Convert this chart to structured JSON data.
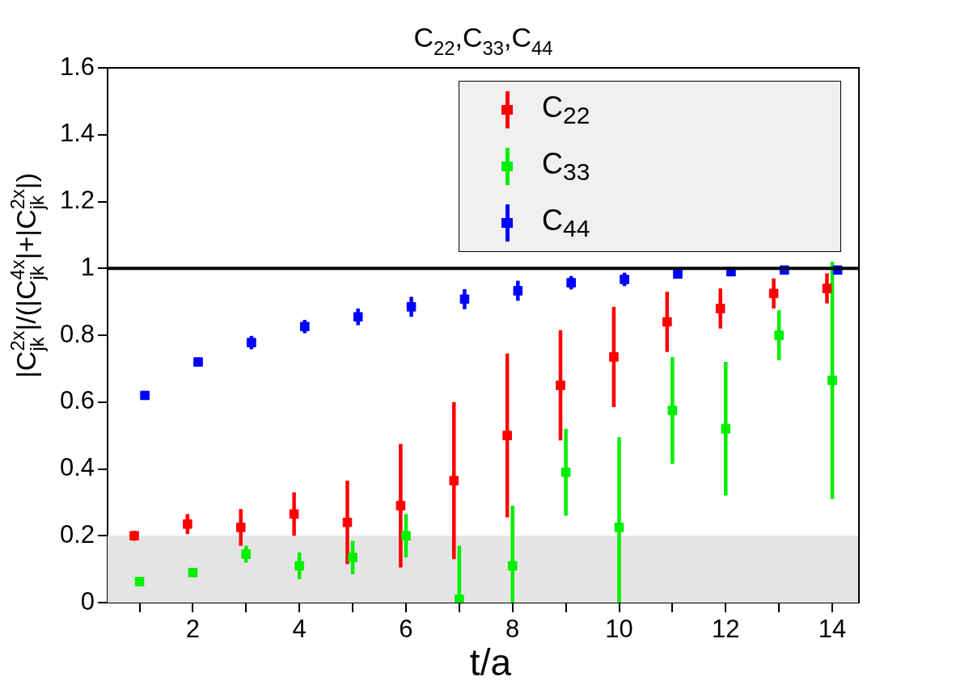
{
  "chart_data": {
    "type": "scatter",
    "title": "C$_{22}$,C$_{33}$,C$_{44}$",
    "xlabel": "t/a",
    "ylabel": "|C$^{2x}$$_{jk}$|/(|C$^{4x}$$_{jk}$|+|C$^{2x}$$_{jk}$|)",
    "xlim": [
      0.4,
      14.5
    ],
    "ylim": [
      0,
      1.6
    ],
    "xticks": [
      {
        "value": 1,
        "label": null
      },
      2,
      {
        "value": 3,
        "label": null
      },
      4,
      {
        "value": 5,
        "label": null
      },
      6,
      {
        "value": 7,
        "label": null
      },
      8,
      {
        "value": 9,
        "label": null
      },
      10,
      {
        "value": 11,
        "label": null
      },
      12,
      {
        "value": 13,
        "label": null
      },
      14
    ],
    "yticks": [
      0,
      0.2,
      0.4,
      0.6,
      0.8,
      1,
      1.2,
      1.4,
      1.6
    ],
    "grid": false,
    "legend": "top right",
    "marker": "square",
    "ref_lines": [
      {
        "axis": "y",
        "value": 1,
        "color": "#000000"
      }
    ],
    "bands": [
      {
        "axis": "y",
        "from": 0,
        "to": 0.2,
        "color": "#e4e4e4"
      }
    ],
    "series": [
      {
        "name": "C$_{22}$",
        "color": "#ff0000",
        "x": [
          0.9,
          1.9,
          2.9,
          3.9,
          4.9,
          5.9,
          6.9,
          7.9,
          8.9,
          9.9,
          10.9,
          11.9,
          12.9,
          13.9
        ],
        "values": [
          0.2,
          0.235,
          0.225,
          0.265,
          0.24,
          0.29,
          0.365,
          0.5,
          0.65,
          0.735,
          0.84,
          0.88,
          0.925,
          0.94
        ],
        "errors": [
          0.015,
          0.03,
          0.055,
          0.065,
          0.125,
          0.185,
          0.235,
          0.245,
          0.165,
          0.15,
          0.09,
          0.06,
          0.045,
          0.045
        ]
      },
      {
        "name": "C$_{33}$",
        "color": "#00ee00",
        "x": [
          1,
          2,
          3,
          4,
          5,
          6,
          7,
          8,
          9,
          10,
          11,
          12,
          13,
          14
        ],
        "values": [
          0.063,
          0.09,
          0.145,
          0.11,
          0.135,
          0.2,
          0.01,
          0.11,
          0.39,
          0.225,
          0.575,
          0.52,
          0.8,
          0.665
        ],
        "errors": [
          null,
          null,
          0.025,
          0.04,
          0.05,
          0.065,
          [
            0,
            0.17
          ],
          [
            0,
            0.29
          ],
          0.13,
          [
            0,
            0.495
          ],
          0.16,
          0.2,
          0.075,
          0.355
        ]
      },
      {
        "name": "C$_{44}$",
        "color": "#0000ff",
        "x": [
          1.1,
          2.1,
          3.1,
          4.1,
          5.1,
          6.1,
          7.1,
          8.1,
          9.1,
          10.1,
          11.1,
          12.1,
          13.1,
          14.1
        ],
        "values": [
          0.62,
          0.72,
          0.778,
          0.826,
          0.855,
          0.885,
          0.908,
          0.933,
          0.957,
          0.967,
          0.983,
          0.99,
          0.995,
          0.995
        ],
        "errors": [
          null,
          null,
          0.02,
          0.02,
          0.025,
          0.03,
          0.03,
          0.03,
          0.02,
          0.02,
          0.01,
          0.01,
          0.01,
          0.01
        ]
      }
    ]
  }
}
